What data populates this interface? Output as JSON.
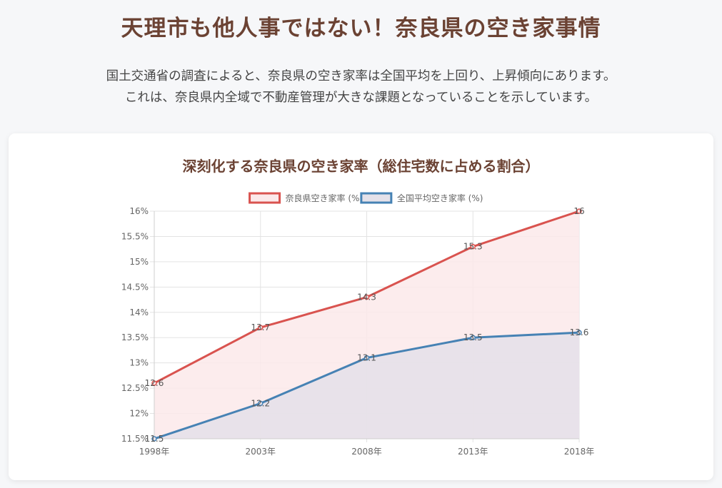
{
  "header": {
    "title": "天理市も他人事ではない！奈良県の空き家事情",
    "intro_line1": "国土交通省の調査によると、奈良県の空き家率は全国平均を上回り、上昇傾向にあります。",
    "intro_line2": "これは、奈良県内全域で不動産管理が大きな課題となっていることを示しています。"
  },
  "chart_data": {
    "type": "line",
    "title": "深刻化する奈良県の空き家率（総住宅数に占める割合）",
    "categories": [
      "1998年",
      "2003年",
      "2008年",
      "2013年",
      "2018年"
    ],
    "series": [
      {
        "name": "奈良県空き家率 (%)",
        "values": [
          12.6,
          13.7,
          14.3,
          15.3,
          16
        ],
        "color": "#d9534f",
        "fill": "#fbe9ea"
      },
      {
        "name": "全国平均空き家率 (%)",
        "values": [
          11.5,
          12.2,
          13.1,
          13.5,
          13.6
        ],
        "color": "#4682b4",
        "fill": "#e4e1e9"
      }
    ],
    "y_ticks": [
      "11.5%",
      "12%",
      "12.5%",
      "13%",
      "13.5%",
      "14%",
      "14.5%",
      "15%",
      "15.5%",
      "16%"
    ],
    "ylim": [
      11.5,
      16
    ],
    "y_step": 0.5,
    "grid": true,
    "legend": "top",
    "data_labels": true,
    "fill_area": true,
    "xlabel": "",
    "ylabel": ""
  }
}
